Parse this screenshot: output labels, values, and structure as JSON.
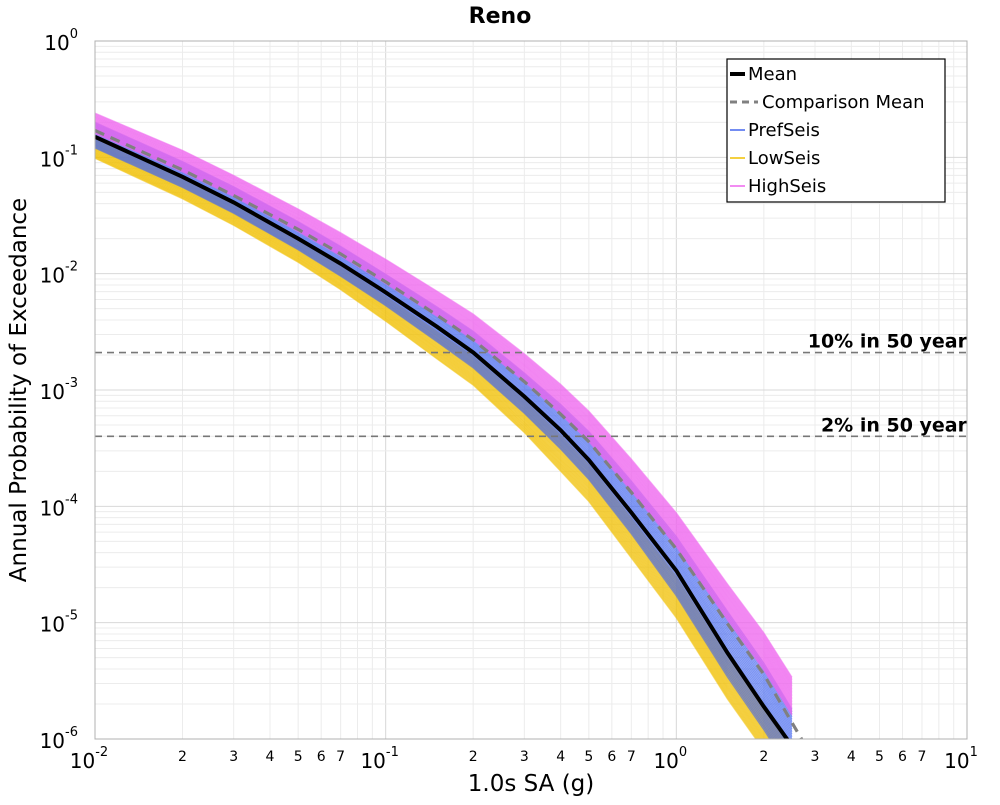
{
  "chart_data": {
    "type": "line",
    "title": "Reno",
    "xlabel": "1.0s SA (g)",
    "ylabel": "Annual Probability of Exceedance",
    "x_scale": "log",
    "y_scale": "log",
    "xlim": [
      0.01,
      10
    ],
    "ylim": [
      1e-06,
      1
    ],
    "grid": true,
    "legend_position": "top-right",
    "x_ticks": [
      {
        "value": 0.01,
        "base": "10",
        "exp": "-2"
      },
      {
        "value": 0.1,
        "base": "10",
        "exp": "-1"
      },
      {
        "value": 1,
        "base": "10",
        "exp": "0"
      },
      {
        "value": 10,
        "base": "10",
        "exp": "1"
      }
    ],
    "x_minor_ticks": [
      {
        "value": 0.02,
        "label": "2"
      },
      {
        "value": 0.03,
        "label": "3"
      },
      {
        "value": 0.04,
        "label": "4"
      },
      {
        "value": 0.05,
        "label": "5"
      },
      {
        "value": 0.06,
        "label": "6"
      },
      {
        "value": 0.07,
        "label": "7"
      },
      {
        "value": 0.2,
        "label": "2"
      },
      {
        "value": 0.3,
        "label": "3"
      },
      {
        "value": 0.4,
        "label": "4"
      },
      {
        "value": 0.5,
        "label": "5"
      },
      {
        "value": 0.6,
        "label": "6"
      },
      {
        "value": 0.7,
        "label": "7"
      },
      {
        "value": 2,
        "label": "2"
      },
      {
        "value": 3,
        "label": "3"
      },
      {
        "value": 4,
        "label": "4"
      },
      {
        "value": 5,
        "label": "5"
      },
      {
        "value": 6,
        "label": "6"
      },
      {
        "value": 7,
        "label": "7"
      }
    ],
    "y_ticks": [
      {
        "value": 1,
        "base": "10",
        "exp": "0"
      },
      {
        "value": 0.1,
        "base": "10",
        "exp": "-1"
      },
      {
        "value": 0.01,
        "base": "10",
        "exp": "-2"
      },
      {
        "value": 0.001,
        "base": "10",
        "exp": "-3"
      },
      {
        "value": 0.0001,
        "base": "10",
        "exp": "-4"
      },
      {
        "value": 1e-05,
        "base": "10",
        "exp": "-5"
      },
      {
        "value": 1e-06,
        "base": "10",
        "exp": "-6"
      }
    ],
    "reference_lines": [
      {
        "label": "10% in 50 year",
        "y": 0.0021
      },
      {
        "label": "2% in 50 year",
        "y": 0.0004
      }
    ],
    "series": [
      {
        "name": "Mean",
        "style": "solid-thick",
        "color": "#000000",
        "x": [
          0.01,
          0.02,
          0.03,
          0.05,
          0.07,
          0.1,
          0.15,
          0.2,
          0.3,
          0.4,
          0.5,
          0.7,
          1.0,
          1.5,
          2.0,
          2.5
        ],
        "y": [
          0.15,
          0.068,
          0.041,
          0.02,
          0.0122,
          0.0069,
          0.0035,
          0.0021,
          0.00088,
          0.00045,
          0.00025,
          8.85e-05,
          2.8e-05,
          5.5e-06,
          1.9e-06,
          8.7e-07
        ]
      },
      {
        "name": "Comparison Mean",
        "style": "dashed",
        "color": "#808080",
        "x": [
          0.01,
          0.02,
          0.03,
          0.05,
          0.07,
          0.1,
          0.15,
          0.2,
          0.3,
          0.4,
          0.5,
          0.7,
          1.0,
          1.5,
          2.0,
          2.8
        ],
        "y": [
          0.17,
          0.078,
          0.047,
          0.024,
          0.0148,
          0.0085,
          0.0044,
          0.0027,
          0.00118,
          0.00062,
          0.00036,
          0.000132,
          4.3e-05,
          9.8e-06,
          3.6e-06,
          8.5e-07
        ]
      },
      {
        "name": "PrefSeis",
        "style": "band",
        "color": "#4466ee",
        "x": [
          0.01,
          0.02,
          0.03,
          0.05,
          0.07,
          0.1,
          0.15,
          0.2,
          0.3,
          0.4,
          0.5,
          0.7,
          1.0,
          1.5,
          2.0,
          2.5
        ],
        "y_low": [
          0.12,
          0.055,
          0.033,
          0.016,
          0.0095,
          0.0053,
          0.0026,
          0.00155,
          0.00063,
          0.00031,
          0.00017,
          5.8e-05,
          1.7e-05,
          3.4e-06,
          1.2e-06,
          5e-07
        ],
        "y_high": [
          0.2,
          0.092,
          0.056,
          0.028,
          0.0172,
          0.0099,
          0.0052,
          0.0032,
          0.0014,
          0.00075,
          0.00044,
          0.000165,
          5.5e-05,
          1.25e-05,
          4.5e-06,
          1.8e-06
        ]
      },
      {
        "name": "LowSeis",
        "style": "band",
        "color": "#f0c000",
        "x": [
          0.01,
          0.02,
          0.03,
          0.05,
          0.07,
          0.1,
          0.15,
          0.2,
          0.3,
          0.4,
          0.5,
          0.7,
          1.0,
          1.5,
          2.0,
          2.5
        ],
        "y_low": [
          0.098,
          0.044,
          0.026,
          0.0125,
          0.0073,
          0.0039,
          0.00185,
          0.0011,
          0.00043,
          0.0002,
          0.00011,
          3.6e-05,
          1.1e-05,
          2.2e-06,
          8e-07,
          3.5e-07
        ],
        "y_high": [
          0.145,
          0.066,
          0.04,
          0.0195,
          0.0117,
          0.0064,
          0.0032,
          0.00195,
          0.00082,
          0.00041,
          0.00023,
          8e-05,
          2.5e-05,
          5e-06,
          1.8e-06,
          8e-07
        ]
      },
      {
        "name": "HighSeis",
        "style": "band",
        "color": "#ee66ee",
        "x": [
          0.01,
          0.02,
          0.03,
          0.05,
          0.07,
          0.1,
          0.15,
          0.2,
          0.3,
          0.4,
          0.5,
          0.7,
          1.0,
          1.5,
          2.0,
          2.5
        ],
        "y_low": [
          0.16,
          0.075,
          0.046,
          0.023,
          0.0142,
          0.0082,
          0.0043,
          0.0027,
          0.00118,
          0.00062,
          0.00036,
          0.000135,
          4.5e-05,
          1.05e-05,
          3.9e-06,
          1.6e-06
        ],
        "y_high": [
          0.24,
          0.115,
          0.07,
          0.036,
          0.0225,
          0.0133,
          0.0071,
          0.0045,
          0.00205,
          0.00112,
          0.00066,
          0.000255,
          8.8e-05,
          2.15e-05,
          8.2e-06,
          3.4e-06
        ]
      }
    ]
  }
}
